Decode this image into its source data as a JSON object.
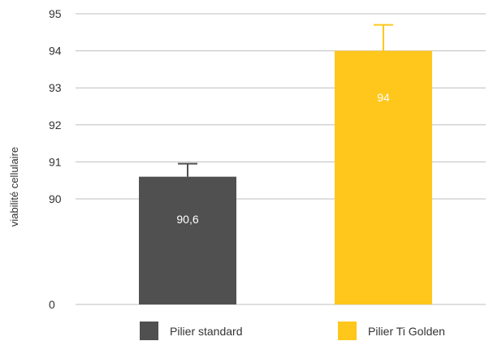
{
  "chart_data": {
    "type": "bar",
    "title": "",
    "xlabel": "",
    "ylabel": "viabilité cellulaire",
    "y_ticks": [
      0,
      90,
      91,
      92,
      93,
      94,
      95
    ],
    "y_tick_labels": [
      "0",
      "90",
      "91",
      "92",
      "93",
      "94",
      "95"
    ],
    "y_axis_break": "between 0 and 90",
    "categories": [
      "Pilier standard",
      "Pilier Ti Golden"
    ],
    "values": [
      90.6,
      94
    ],
    "value_labels": [
      "90,6",
      "94"
    ],
    "error_upper": [
      90.95,
      94.7
    ],
    "colors": [
      "#505050",
      "#FFC71C"
    ],
    "grid": true,
    "legend_position": "bottom"
  }
}
